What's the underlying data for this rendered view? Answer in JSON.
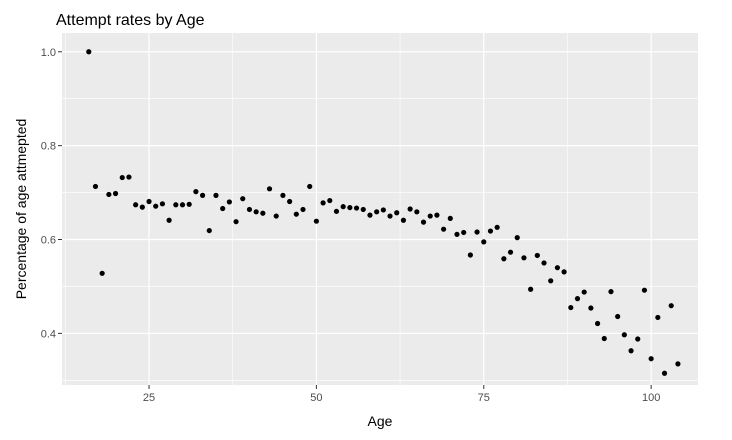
{
  "chart_data": {
    "type": "scatter",
    "title": "Attempt rates by Age",
    "xlabel": "Age",
    "ylabel": "Percentage of age attmepted",
    "xlim": [
      12,
      107
    ],
    "ylim": [
      0.29,
      1.04
    ],
    "x_ticks": [
      25,
      50,
      75,
      100
    ],
    "y_ticks": [
      0.4,
      0.6,
      0.8,
      1.0
    ],
    "x_tick_labels": [
      "25",
      "50",
      "75",
      "100"
    ],
    "y_tick_labels": [
      "0.4",
      "0.6",
      "0.8",
      "1.0"
    ],
    "grid": true,
    "background_color": "#ebebeb",
    "gridline_color": "#ffffff",
    "point_color": "#000000",
    "series": [
      {
        "points": [
          [
            16,
            1.0
          ],
          [
            17,
            0.713
          ],
          [
            18,
            0.528
          ],
          [
            19,
            0.696
          ],
          [
            20,
            0.698
          ],
          [
            21,
            0.732
          ],
          [
            22,
            0.733
          ],
          [
            23,
            0.674
          ],
          [
            24,
            0.669
          ],
          [
            25,
            0.681
          ],
          [
            26,
            0.671
          ],
          [
            27,
            0.676
          ],
          [
            28,
            0.641
          ],
          [
            29,
            0.674
          ],
          [
            30,
            0.674
          ],
          [
            31,
            0.675
          ],
          [
            32,
            0.702
          ],
          [
            33,
            0.694
          ],
          [
            34,
            0.619
          ],
          [
            35,
            0.694
          ],
          [
            36,
            0.666
          ],
          [
            37,
            0.68
          ],
          [
            38,
            0.638
          ],
          [
            39,
            0.687
          ],
          [
            40,
            0.664
          ],
          [
            41,
            0.659
          ],
          [
            42,
            0.656
          ],
          [
            43,
            0.708
          ],
          [
            44,
            0.65
          ],
          [
            45,
            0.694
          ],
          [
            46,
            0.681
          ],
          [
            47,
            0.654
          ],
          [
            48,
            0.664
          ],
          [
            49,
            0.713
          ],
          [
            50,
            0.639
          ],
          [
            51,
            0.678
          ],
          [
            52,
            0.683
          ],
          [
            53,
            0.66
          ],
          [
            54,
            0.67
          ],
          [
            55,
            0.668
          ],
          [
            56,
            0.667
          ],
          [
            57,
            0.664
          ],
          [
            58,
            0.652
          ],
          [
            59,
            0.659
          ],
          [
            60,
            0.663
          ],
          [
            61,
            0.65
          ],
          [
            62,
            0.657
          ],
          [
            63,
            0.641
          ],
          [
            64,
            0.665
          ],
          [
            65,
            0.659
          ],
          [
            66,
            0.637
          ],
          [
            67,
            0.65
          ],
          [
            68,
            0.652
          ],
          [
            69,
            0.622
          ],
          [
            70,
            0.645
          ],
          [
            71,
            0.611
          ],
          [
            72,
            0.615
          ],
          [
            73,
            0.567
          ],
          [
            74,
            0.616
          ],
          [
            75,
            0.595
          ],
          [
            76,
            0.618
          ],
          [
            77,
            0.626
          ],
          [
            78,
            0.559
          ],
          [
            79,
            0.573
          ],
          [
            80,
            0.604
          ],
          [
            81,
            0.561
          ],
          [
            82,
            0.494
          ],
          [
            83,
            0.566
          ],
          [
            84,
            0.55
          ],
          [
            85,
            0.512
          ],
          [
            86,
            0.54
          ],
          [
            87,
            0.531
          ],
          [
            88,
            0.455
          ],
          [
            89,
            0.474
          ],
          [
            90,
            0.488
          ],
          [
            91,
            0.454
          ],
          [
            92,
            0.421
          ],
          [
            93,
            0.389
          ],
          [
            94,
            0.489
          ],
          [
            95,
            0.436
          ],
          [
            96,
            0.397
          ],
          [
            97,
            0.363
          ],
          [
            98,
            0.388
          ],
          [
            99,
            0.492
          ],
          [
            100,
            0.346
          ],
          [
            101,
            0.434
          ],
          [
            102,
            0.315
          ],
          [
            103,
            0.459
          ],
          [
            104,
            0.335
          ]
        ]
      }
    ]
  }
}
